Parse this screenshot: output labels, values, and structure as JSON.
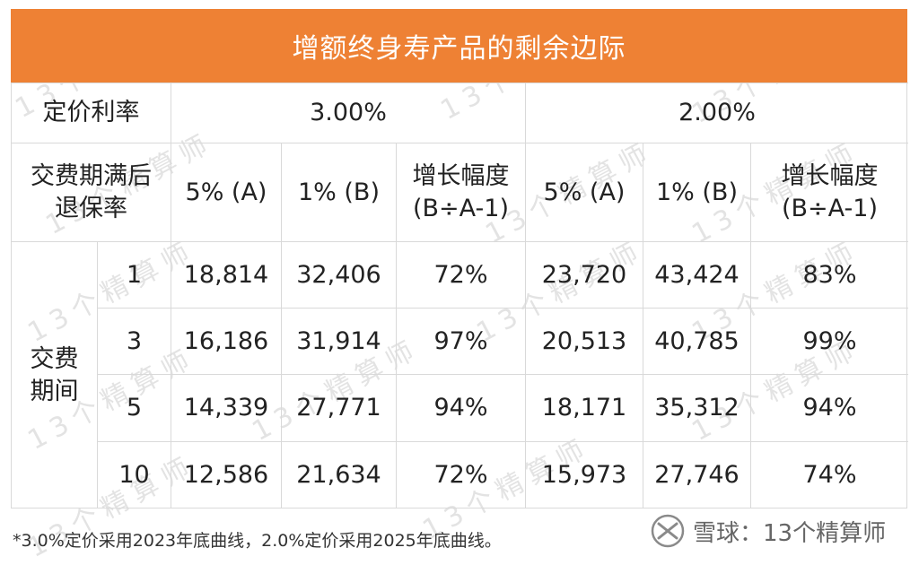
{
  "title": "增额终身寿产品的剩余边际",
  "watermark": "13个精算师",
  "table": {
    "rate_label": "定价利率",
    "rates": [
      "3.00%",
      "2.00%"
    ],
    "lapse_label_lines": [
      "交费期满后",
      "退保率"
    ],
    "col_headers": [
      "5% (A)",
      "1% (B)",
      "增长幅度",
      "(B÷A-1)",
      "5% (A)",
      "1% (B)",
      "增长幅度",
      "(B÷A-1)"
    ],
    "period_label_lines": [
      "交费",
      "期间"
    ],
    "rows": [
      {
        "period": "1",
        "values": [
          "18,814",
          "32,406",
          "72%",
          "23,720",
          "43,424",
          "83%"
        ]
      },
      {
        "period": "3",
        "values": [
          "16,186",
          "31,914",
          "97%",
          "20,513",
          "40,785",
          "99%"
        ]
      },
      {
        "period": "5",
        "values": [
          "14,339",
          "27,771",
          "94%",
          "18,171",
          "35,312",
          "94%"
        ]
      },
      {
        "period": "10",
        "values": [
          "12,586",
          "21,634",
          "72%",
          "15,973",
          "27,746",
          "74%"
        ]
      }
    ]
  },
  "footnote": "*3.0%定价采用2023年底曲线，2.0%定价采用2025年底曲线。",
  "brand": "雪球：13个精算师",
  "colors": {
    "header": "#ee8134",
    "grid": "#d9d9d9",
    "watermark": "#e3e3e3"
  }
}
